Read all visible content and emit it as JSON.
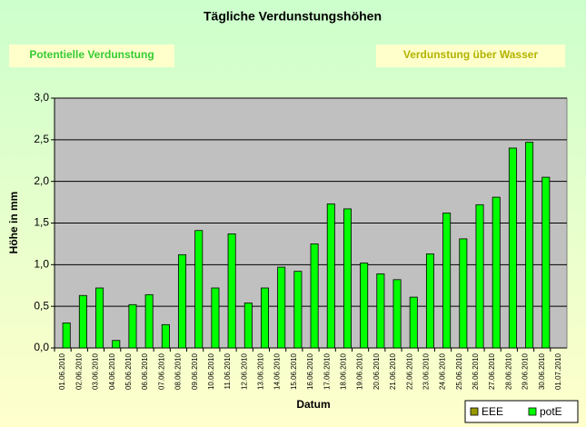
{
  "chart_data": {
    "type": "bar",
    "title": "Tägliche Verdunstungshöhen",
    "annotations": [
      "Potentielle Verdunstung",
      "Verdunstung über Wasser"
    ],
    "xlabel": "Datum",
    "ylabel": "Höhe in mm",
    "categories": [
      "01.06.2010",
      "02.06.2010",
      "03.06.2010",
      "04.06.2010",
      "05.06.2010",
      "06.06.2010",
      "07.06.2010",
      "08.06.2010",
      "09.06.2010",
      "10.06.2010",
      "11.06.2010",
      "12.06.2010",
      "13.06.2010",
      "14.06.2010",
      "15.06.2010",
      "16.06.2010",
      "17.06.2010",
      "18.06.2010",
      "19.06.2010",
      "20.06.2010",
      "21.06.2010",
      "22.06.2010",
      "23.06.2010",
      "24.06.2010",
      "25.06.2010",
      "26.06.2010",
      "27.06.2010",
      "28.06.2010",
      "29.06.2010",
      "30.06.2010",
      "01.07.2010"
    ],
    "series": [
      {
        "name": "EEE",
        "color": "#999900",
        "values": [
          null,
          null,
          null,
          null,
          null,
          null,
          null,
          null,
          null,
          null,
          null,
          null,
          null,
          null,
          null,
          null,
          null,
          null,
          null,
          null,
          null,
          null,
          null,
          null,
          null,
          null,
          null,
          null,
          null,
          null,
          null
        ]
      },
      {
        "name": "potE",
        "color": "#00ff00",
        "values": [
          0.3,
          0.63,
          0.72,
          0.09,
          0.52,
          0.64,
          0.28,
          1.12,
          1.41,
          0.72,
          1.37,
          0.54,
          0.72,
          0.97,
          0.92,
          1.25,
          1.73,
          1.67,
          1.02,
          0.89,
          0.82,
          0.61,
          1.13,
          1.62,
          1.31,
          1.72,
          1.81,
          2.4,
          2.47,
          2.05,
          null
        ]
      }
    ],
    "ylim": [
      0,
      3
    ],
    "yticks": [
      {
        "value": 0,
        "label": "0,0"
      },
      {
        "value": 0.5,
        "label": "0,5"
      },
      {
        "value": 1,
        "label": "1,0"
      },
      {
        "value": 1.5,
        "label": "1,5"
      },
      {
        "value": 2,
        "label": "2,0"
      },
      {
        "value": 2.5,
        "label": "2,5"
      },
      {
        "value": 3,
        "label": "3,0"
      }
    ],
    "grid": true,
    "legend": "bottom-right"
  }
}
